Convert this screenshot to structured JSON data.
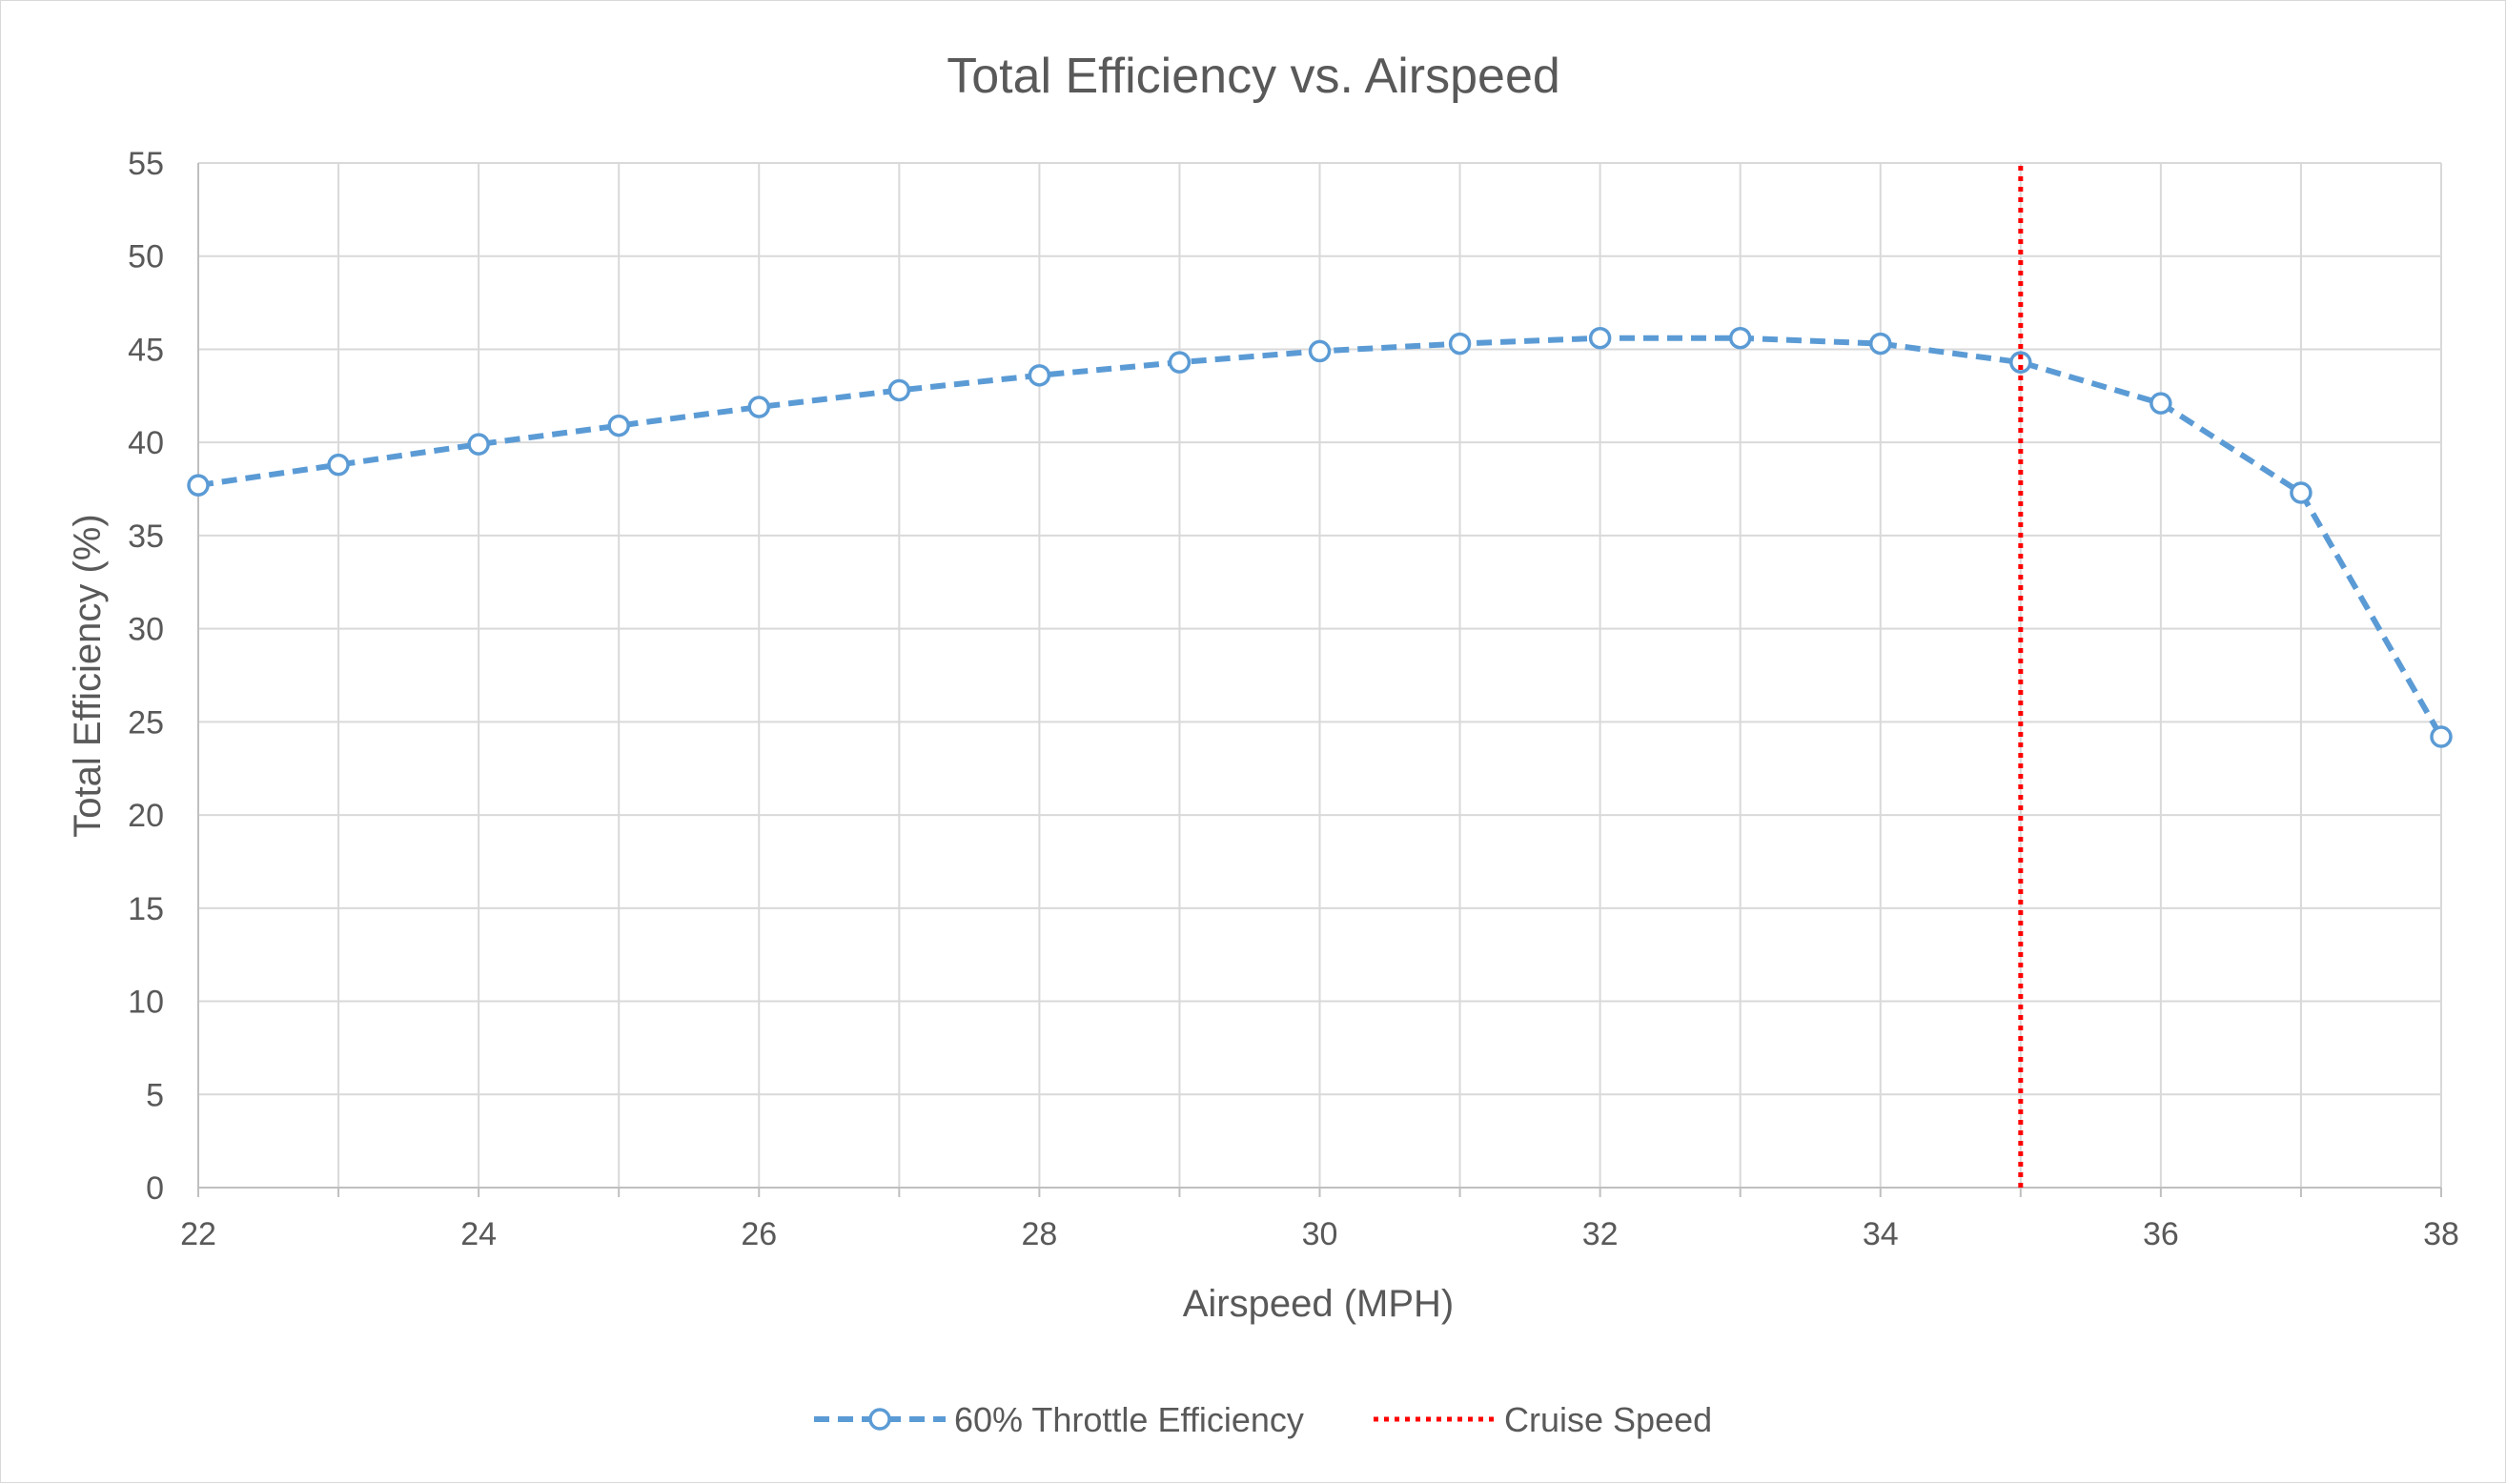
{
  "chart_data": {
    "type": "line",
    "title": "Total Efficiency vs. Airspeed",
    "xlabel": "Airspeed (MPH)",
    "ylabel": "Total Efficiency (%)",
    "xlim": [
      22,
      38
    ],
    "ylim": [
      0,
      55
    ],
    "x_ticks": [
      22,
      24,
      26,
      28,
      30,
      32,
      34,
      36,
      38
    ],
    "x_tick_labels": [
      "22",
      "24",
      "26",
      "28",
      "30",
      "32",
      "34",
      "36",
      "38"
    ],
    "y_ticks": [
      0,
      5,
      10,
      15,
      20,
      25,
      30,
      35,
      40,
      45,
      50,
      55
    ],
    "y_tick_labels": [
      "0",
      "5",
      "10",
      "15",
      "20",
      "25",
      "30",
      "35",
      "40",
      "45",
      "50",
      "55"
    ],
    "grid": true,
    "legend_position": "bottom",
    "series": [
      {
        "name": "60% Throttle Efficiency",
        "color": "#5b9bd5",
        "style": "dashed",
        "marker": "circle",
        "x": [
          22,
          23,
          24,
          25,
          26,
          27,
          28,
          29,
          30,
          31,
          32,
          33,
          34,
          35,
          36,
          37,
          38
        ],
        "y": [
          37.7,
          38.8,
          39.9,
          40.9,
          41.9,
          42.8,
          43.6,
          44.3,
          44.9,
          45.3,
          45.6,
          45.6,
          45.3,
          44.3,
          42.1,
          37.3,
          24.2
        ]
      },
      {
        "name": "Cruise Speed",
        "color": "#ff0000",
        "style": "dotted",
        "marker": "none",
        "x": [
          35,
          35
        ],
        "y": [
          0,
          55
        ]
      }
    ]
  }
}
